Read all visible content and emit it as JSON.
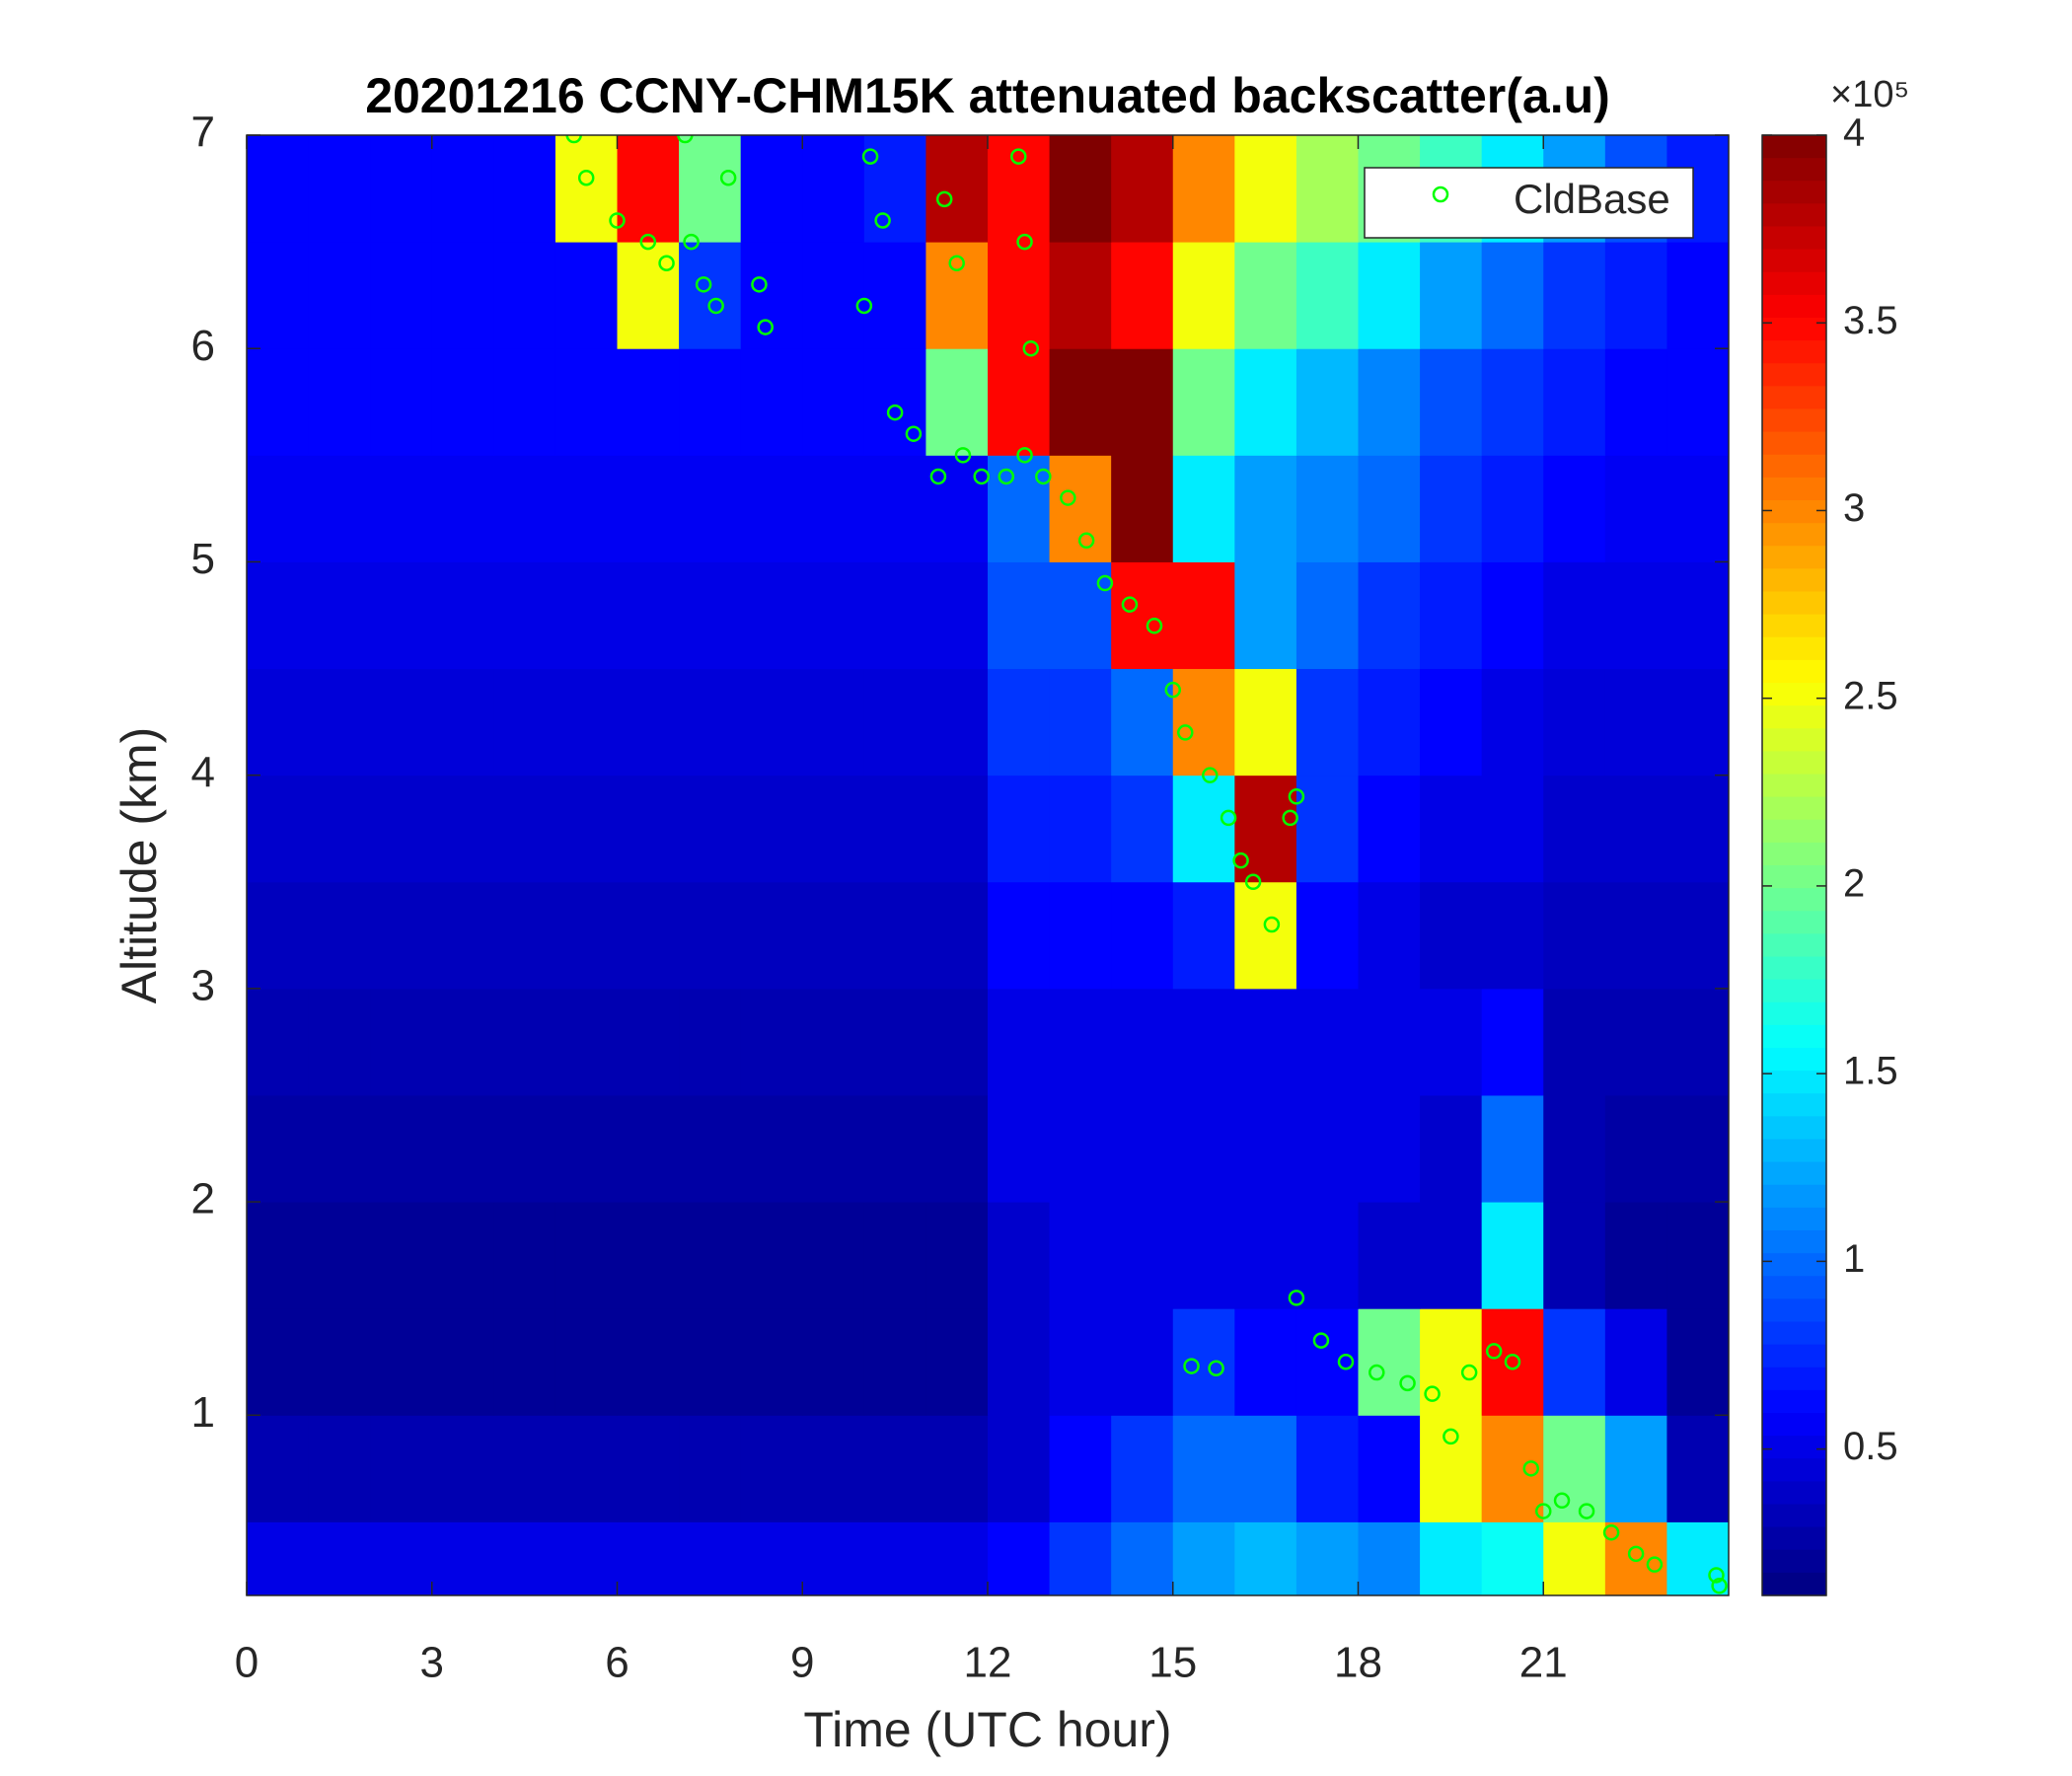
{
  "chart_data": {
    "type": "heatmap",
    "title": "20201216 CCNY-CHM15K attenuated backscatter(a.u)",
    "xlabel": "Time (UTC hour)",
    "ylabel": "Altitude (km)",
    "xlim": [
      0,
      24
    ],
    "xticks": [
      0,
      3,
      6,
      9,
      12,
      15,
      18,
      21
    ],
    "ylim": [
      0.155,
      7
    ],
    "yticks": [
      1,
      2,
      3,
      4,
      5,
      6,
      7
    ],
    "x_bins": [
      0,
      1,
      2,
      3,
      4,
      5,
      6,
      7,
      8,
      9,
      10,
      11,
      12,
      13,
      14,
      15,
      16,
      17,
      18,
      19,
      20,
      21,
      22,
      23,
      24
    ],
    "y_bins": [
      0,
      0.5,
      1,
      1.5,
      2,
      2.5,
      3,
      3.5,
      4,
      4.5,
      5,
      5.5,
      6,
      6.5,
      7
    ],
    "z": [
      [
        0.5,
        0.5,
        0.5,
        0.5,
        0.5,
        0.5,
        0.5,
        0.5,
        0.5,
        0.5,
        0.5,
        0.5,
        0.6,
        0.8,
        1.0,
        1.2,
        1.3,
        1.2,
        1.1,
        1.5,
        1.6,
        2.5,
        3.0,
        1.5
      ],
      [
        0.3,
        0.3,
        0.3,
        0.3,
        0.3,
        0.3,
        0.3,
        0.3,
        0.3,
        0.3,
        0.3,
        0.3,
        0.4,
        0.6,
        0.8,
        1.0,
        1.0,
        0.7,
        0.6,
        2.5,
        3.0,
        2.0,
        1.2,
        0.3
      ],
      [
        0.2,
        0.2,
        0.2,
        0.2,
        0.2,
        0.2,
        0.2,
        0.2,
        0.2,
        0.2,
        0.2,
        0.2,
        0.4,
        0.5,
        0.5,
        0.8,
        0.6,
        0.6,
        2.0,
        2.5,
        3.5,
        0.8,
        0.5,
        0.2
      ],
      [
        0.2,
        0.2,
        0.2,
        0.2,
        0.2,
        0.2,
        0.2,
        0.2,
        0.2,
        0.2,
        0.2,
        0.2,
        0.4,
        0.5,
        0.5,
        0.5,
        0.5,
        0.5,
        0.4,
        0.4,
        1.5,
        0.3,
        0.2,
        0.2
      ],
      [
        0.25,
        0.25,
        0.25,
        0.25,
        0.25,
        0.25,
        0.25,
        0.25,
        0.25,
        0.25,
        0.25,
        0.25,
        0.5,
        0.5,
        0.5,
        0.5,
        0.5,
        0.5,
        0.5,
        0.4,
        1.0,
        0.3,
        0.25,
        0.25
      ],
      [
        0.3,
        0.3,
        0.3,
        0.3,
        0.3,
        0.3,
        0.3,
        0.3,
        0.3,
        0.3,
        0.3,
        0.3,
        0.5,
        0.5,
        0.5,
        0.5,
        0.5,
        0.5,
        0.5,
        0.5,
        0.6,
        0.3,
        0.3,
        0.3
      ],
      [
        0.35,
        0.35,
        0.35,
        0.35,
        0.35,
        0.35,
        0.35,
        0.35,
        0.35,
        0.35,
        0.35,
        0.35,
        0.6,
        0.6,
        0.6,
        0.7,
        2.5,
        0.6,
        0.5,
        0.4,
        0.4,
        0.35,
        0.35,
        0.35
      ],
      [
        0.4,
        0.4,
        0.4,
        0.4,
        0.4,
        0.4,
        0.4,
        0.4,
        0.4,
        0.4,
        0.4,
        0.4,
        0.7,
        0.7,
        0.8,
        1.5,
        3.8,
        0.8,
        0.6,
        0.5,
        0.5,
        0.4,
        0.4,
        0.4
      ],
      [
        0.45,
        0.45,
        0.45,
        0.45,
        0.45,
        0.45,
        0.45,
        0.45,
        0.45,
        0.45,
        0.45,
        0.45,
        0.8,
        0.8,
        1.0,
        3.0,
        2.5,
        0.8,
        0.7,
        0.6,
        0.5,
        0.45,
        0.45,
        0.45
      ],
      [
        0.5,
        0.5,
        0.5,
        0.5,
        0.5,
        0.5,
        0.5,
        0.5,
        0.5,
        0.5,
        0.5,
        0.5,
        0.9,
        0.9,
        3.5,
        3.5,
        1.2,
        1.0,
        0.8,
        0.7,
        0.6,
        0.5,
        0.5,
        0.5
      ],
      [
        0.55,
        0.55,
        0.55,
        0.55,
        0.55,
        0.55,
        0.55,
        0.55,
        0.55,
        0.55,
        0.55,
        0.55,
        1.0,
        3.0,
        4,
        1.5,
        1.2,
        1.1,
        1.0,
        0.8,
        0.7,
        0.6,
        0.55,
        0.55
      ],
      [
        0.6,
        0.6,
        0.6,
        0.6,
        0.6,
        0.6,
        0.6,
        0.6,
        0.6,
        0.6,
        0.6,
        2.0,
        3.5,
        4,
        4,
        2.0,
        1.5,
        1.3,
        1.1,
        0.9,
        0.8,
        0.7,
        0.6,
        0.6
      ],
      [
        0.6,
        0.6,
        0.6,
        0.6,
        0.6,
        0.6,
        2.5,
        0.8,
        0.6,
        0.6,
        0.6,
        3.0,
        3.5,
        3.8,
        3.5,
        2.5,
        2.0,
        1.8,
        1.5,
        1.2,
        1.0,
        0.8,
        0.7,
        0.6
      ],
      [
        0.6,
        0.6,
        0.6,
        0.6,
        0.6,
        2.5,
        3.5,
        2.0,
        0.6,
        0.6,
        0.7,
        3.8,
        3.5,
        4,
        3.8,
        3.0,
        2.5,
        2.2,
        2.0,
        1.8,
        1.5,
        1.2,
        0.9,
        0.7
      ]
    ],
    "colormap": "jet",
    "clim": [
      0.11,
      4
    ],
    "colorbar_ticks": [
      0.5,
      1,
      1.5,
      2,
      2.5,
      3,
      3.5,
      4
    ],
    "colorbar_multiplier": "×10⁵",
    "legend": "upper right",
    "series": [
      {
        "type": "scatter",
        "name": "CldBase",
        "color": "#00ff00",
        "x": [
          5.3,
          5.5,
          6.0,
          6.5,
          6.8,
          7.2,
          7.4,
          7.6,
          7.1,
          7.8,
          8.4,
          8.3,
          10.0,
          10.1,
          10.3,
          10.5,
          10.8,
          11.2,
          11.6,
          11.9,
          12.3,
          12.6,
          12.9,
          13.3,
          13.6,
          13.9,
          14.3,
          14.7,
          15.0,
          15.2,
          15.6,
          15.9,
          16.1,
          16.3,
          16.6,
          16.9,
          17.0,
          11.3,
          11.5,
          12.5,
          12.6,
          12.7,
          15.3,
          15.7,
          17.0,
          17.4,
          17.8,
          18.3,
          18.8,
          19.2,
          19.5,
          19.8,
          20.2,
          20.5,
          20.8,
          21.0,
          21.3,
          21.7,
          22.1,
          22.5,
          22.8,
          23.8,
          23.85
        ],
        "values": [
          7.0,
          6.8,
          6.6,
          6.5,
          6.4,
          6.5,
          6.3,
          6.2,
          7.0,
          6.8,
          6.1,
          6.3,
          6.2,
          6.9,
          6.6,
          5.7,
          5.6,
          5.4,
          5.5,
          5.4,
          5.4,
          5.5,
          5.4,
          5.3,
          5.1,
          4.9,
          4.8,
          4.7,
          4.4,
          4.2,
          4.0,
          3.8,
          3.6,
          3.5,
          3.3,
          3.8,
          3.9,
          6.7,
          6.4,
          6.9,
          6.5,
          6.0,
          1.23,
          1.22,
          1.55,
          1.35,
          1.25,
          1.2,
          1.15,
          1.1,
          0.9,
          1.2,
          1.3,
          1.25,
          0.75,
          0.55,
          0.6,
          0.55,
          0.45,
          0.35,
          0.3,
          0.25,
          0.2
        ]
      }
    ]
  }
}
